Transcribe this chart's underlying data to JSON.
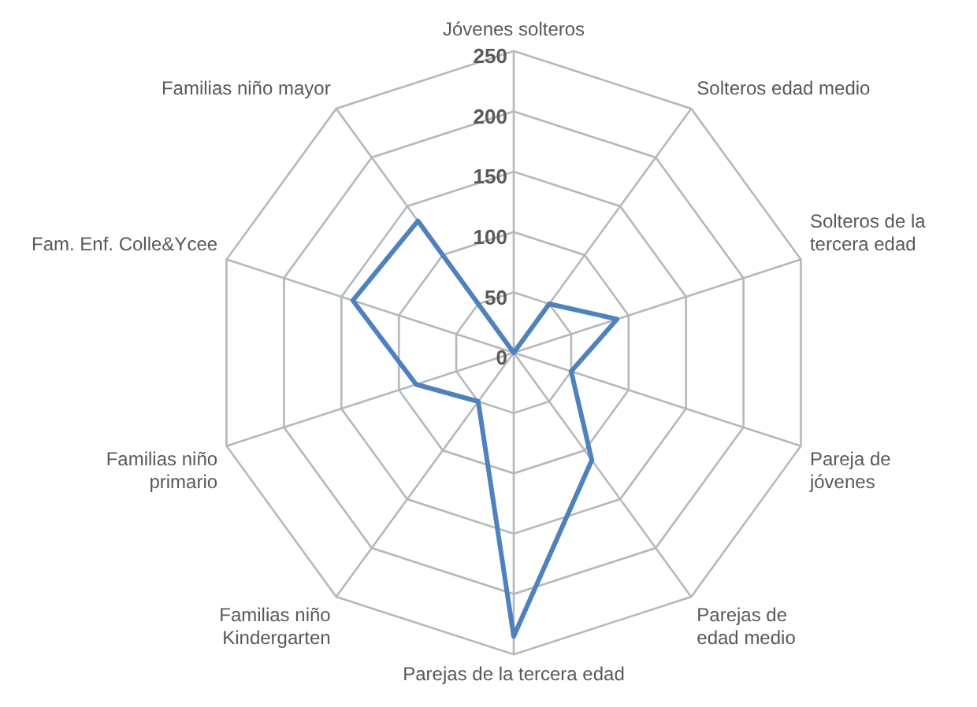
{
  "chart_data": {
    "type": "radar",
    "categories": [
      "Jóvenes solteros",
      "Solteros edad medio",
      "Solteros de la tercera edad",
      "Pareja de jóvenes",
      "Parejas de edad medio",
      "Parejas de la tercera edad",
      "Familias niño Kindergarten",
      "Familias niño primario",
      "Fam. Enf. Colle&Ycee",
      "Familias niño mayor"
    ],
    "series": [
      {
        "color": "#4f81bd",
        "values": [
          0,
          50,
          90,
          50,
          110,
          235,
          50,
          85,
          140,
          135
        ]
      }
    ],
    "ylim": [
      0,
      250
    ],
    "yticks": [
      0,
      50,
      100,
      150,
      200,
      250
    ],
    "grid": true,
    "legend": false,
    "marker": "none",
    "line_style": "solid"
  }
}
